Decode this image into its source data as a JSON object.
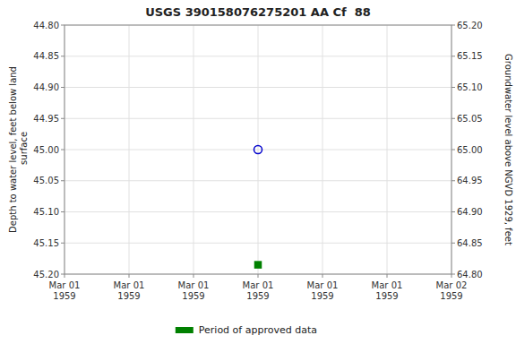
{
  "chart_data": {
    "type": "scatter",
    "title": "USGS 390158076275201 AA Cf  88",
    "y_label": "Depth to water level, feet below land\n surface",
    "y2_label": "Groundwater level above NGVD 1929, feet",
    "categories": [
      "Mar 01\n1959",
      "Mar 01\n1959",
      "Mar 01\n1959",
      "Mar 01\n1959",
      "Mar 01\n1959",
      "Mar 01\n1959",
      "Mar 02\n1959"
    ],
    "series": [
      {
        "color": "#0000cc",
        "marker": "open-circle",
        "values": [
          null,
          null,
          null,
          45.0,
          null,
          null,
          null
        ]
      },
      {
        "name": "Period of approved data",
        "color": "#008000",
        "marker": "square",
        "values": [
          null,
          null,
          null,
          45.185,
          null,
          null,
          null
        ]
      }
    ],
    "ylim": [
      45.2,
      44.8
    ],
    "yticks": [
      {
        "value": 44.8,
        "label": "44.80"
      },
      {
        "value": 44.85,
        "label": "44.85"
      },
      {
        "value": 44.9,
        "label": "44.90"
      },
      {
        "value": 44.95,
        "label": "44.95"
      },
      {
        "value": 45.0,
        "label": "45.00"
      },
      {
        "value": 45.05,
        "label": "45.05"
      },
      {
        "value": 45.1,
        "label": "45.10"
      },
      {
        "value": 45.15,
        "label": "45.15"
      },
      {
        "value": 45.2,
        "label": "45.20"
      }
    ],
    "y2lim": [
      64.8,
      65.2
    ],
    "y2ticks": [
      {
        "value": 65.2,
        "label": "65.20"
      },
      {
        "value": 65.15,
        "label": "65.15"
      },
      {
        "value": 65.1,
        "label": "65.10"
      },
      {
        "value": 65.05,
        "label": "65.05"
      },
      {
        "value": 65.0,
        "label": "65.00"
      },
      {
        "value": 64.95,
        "label": "64.95"
      },
      {
        "value": 64.9,
        "label": "64.90"
      },
      {
        "value": 64.85,
        "label": "64.85"
      },
      {
        "value": 64.8,
        "label": "64.80"
      }
    ],
    "grid": true,
    "legend": "bottom"
  }
}
